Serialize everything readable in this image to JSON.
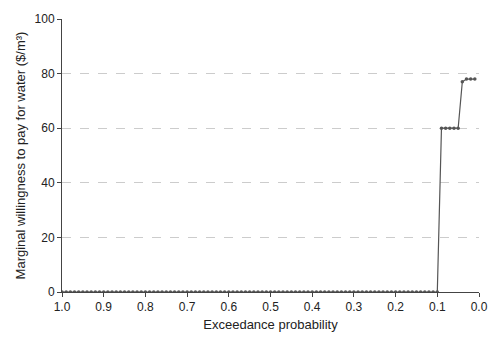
{
  "chart_data": {
    "type": "line",
    "x_label": "Exceedance probability",
    "y_label": "Marginal willingness to pay for water ($/m³)",
    "x": [
      1.0,
      0.99,
      0.98,
      0.97,
      0.96,
      0.95,
      0.94,
      0.93,
      0.92,
      0.91,
      0.9,
      0.89,
      0.88,
      0.87,
      0.86,
      0.85,
      0.84,
      0.83,
      0.82,
      0.81,
      0.8,
      0.79,
      0.78,
      0.77,
      0.76,
      0.75,
      0.74,
      0.73,
      0.72,
      0.71,
      0.7,
      0.69,
      0.68,
      0.67,
      0.66,
      0.65,
      0.64,
      0.63,
      0.62,
      0.61,
      0.6,
      0.59,
      0.58,
      0.57,
      0.56,
      0.55,
      0.54,
      0.53,
      0.52,
      0.51,
      0.5,
      0.49,
      0.48,
      0.47,
      0.46,
      0.45,
      0.44,
      0.43,
      0.42,
      0.41,
      0.4,
      0.39,
      0.38,
      0.37,
      0.36,
      0.35,
      0.34,
      0.33,
      0.32,
      0.31,
      0.3,
      0.29,
      0.28,
      0.27,
      0.26,
      0.25,
      0.24,
      0.23,
      0.22,
      0.21,
      0.2,
      0.19,
      0.18,
      0.17,
      0.16,
      0.15,
      0.14,
      0.13,
      0.12,
      0.11,
      0.1,
      0.09,
      0.08,
      0.07,
      0.06,
      0.05,
      0.04,
      0.03,
      0.02,
      0.01
    ],
    "values": [
      0,
      0,
      0,
      0,
      0,
      0,
      0,
      0,
      0,
      0,
      0,
      0,
      0,
      0,
      0,
      0,
      0,
      0,
      0,
      0,
      0,
      0,
      0,
      0,
      0,
      0,
      0,
      0,
      0,
      0,
      0,
      0,
      0,
      0,
      0,
      0,
      0,
      0,
      0,
      0,
      0,
      0,
      0,
      0,
      0,
      0,
      0,
      0,
      0,
      0,
      0,
      0,
      0,
      0,
      0,
      0,
      0,
      0,
      0,
      0,
      0,
      0,
      0,
      0,
      0,
      0,
      0,
      0,
      0,
      0,
      0,
      0,
      0,
      0,
      0,
      0,
      0,
      0,
      0,
      0,
      0,
      0,
      0,
      0,
      0,
      0,
      0,
      0,
      0,
      0,
      0,
      60,
      60,
      60,
      60,
      60,
      77,
      78,
      78,
      78
    ],
    "color": "#555555",
    "marker": "circle",
    "line_style": "solid",
    "xlim": [
      1.0,
      0.0
    ],
    "xticks": [
      {
        "value": 1.0,
        "label": "1.0"
      },
      0.9,
      0.8,
      0.7,
      0.6,
      0.5,
      0.4,
      0.3,
      0.2,
      0.1,
      {
        "value": 0.0,
        "label": "0.0"
      }
    ],
    "ylim": [
      0,
      100
    ],
    "yticks": [
      0,
      20,
      40,
      60,
      80,
      100
    ],
    "grid": true
  }
}
